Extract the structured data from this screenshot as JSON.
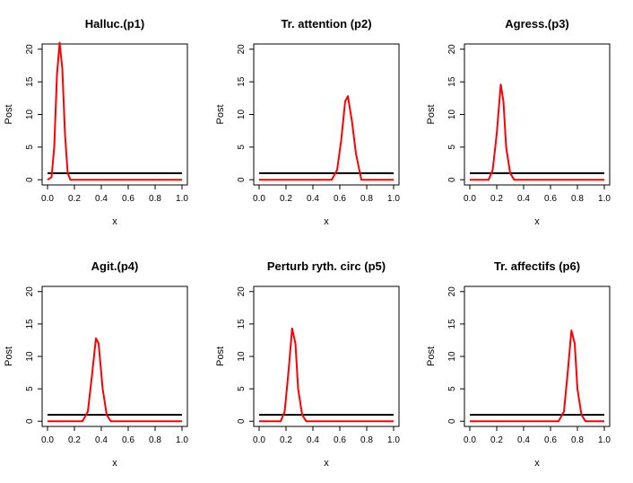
{
  "chart_data": [
    {
      "type": "line",
      "title": "Halluc.(p1)",
      "xlabel": "x",
      "ylabel": "Post",
      "xlim": [
        0,
        1
      ],
      "ylim": [
        0,
        20
      ],
      "xticks": [
        "0.0",
        "0.2",
        "0.4",
        "0.6",
        "0.8",
        "1.0"
      ],
      "yticks": [
        "0",
        "5",
        "10",
        "15",
        "20"
      ],
      "grid": false,
      "series": [
        {
          "color": "#000000",
          "x": [
            0,
            1
          ],
          "y": [
            1,
            1
          ]
        },
        {
          "color": "#ff0000",
          "x": [
            0.0,
            0.03,
            0.05,
            0.07,
            0.09,
            0.11,
            0.13,
            0.15,
            0.17,
            1.0
          ],
          "y": [
            0,
            0.4,
            5,
            16,
            21,
            17,
            7,
            1,
            0,
            0
          ]
        }
      ]
    },
    {
      "type": "line",
      "title": "Tr. attention (p2)",
      "xlabel": "x",
      "ylabel": "Post",
      "xlim": [
        0,
        1
      ],
      "ylim": [
        0,
        20
      ],
      "xticks": [
        "0.0",
        "0.2",
        "0.4",
        "0.6",
        "0.8",
        "1.0"
      ],
      "yticks": [
        "0",
        "5",
        "10",
        "15",
        "20"
      ],
      "grid": false,
      "series": [
        {
          "color": "#000000",
          "x": [
            0,
            1
          ],
          "y": [
            1,
            1
          ]
        },
        {
          "color": "#ff0000",
          "x": [
            0.0,
            0.54,
            0.58,
            0.61,
            0.64,
            0.66,
            0.69,
            0.72,
            0.76,
            1.0
          ],
          "y": [
            0,
            0,
            1.5,
            6,
            12,
            12.8,
            9,
            4,
            0,
            0
          ]
        }
      ]
    },
    {
      "type": "line",
      "title": "Agress.(p3)",
      "xlabel": "x",
      "ylabel": "Post",
      "xlim": [
        0,
        1
      ],
      "ylim": [
        0,
        20
      ],
      "xticks": [
        "0.0",
        "0.2",
        "0.4",
        "0.6",
        "0.8",
        "1.0"
      ],
      "yticks": [
        "0",
        "5",
        "10",
        "15",
        "20"
      ],
      "grid": false,
      "series": [
        {
          "color": "#000000",
          "x": [
            0,
            1
          ],
          "y": [
            1,
            1
          ]
        },
        {
          "color": "#ff0000",
          "x": [
            0.0,
            0.14,
            0.17,
            0.2,
            0.23,
            0.25,
            0.27,
            0.3,
            0.33,
            1.0
          ],
          "y": [
            0,
            0,
            1.5,
            7,
            14.6,
            12,
            5,
            1,
            0,
            0
          ]
        }
      ]
    },
    {
      "type": "line",
      "title": "Agit.(p4)",
      "xlabel": "x",
      "ylabel": "Post",
      "xlim": [
        0,
        1
      ],
      "ylim": [
        0,
        20
      ],
      "xticks": [
        "0.0",
        "0.2",
        "0.4",
        "0.6",
        "0.8",
        "1.0"
      ],
      "yticks": [
        "0",
        "5",
        "10",
        "15",
        "20"
      ],
      "grid": false,
      "series": [
        {
          "color": "#000000",
          "x": [
            0,
            1
          ],
          "y": [
            1,
            1
          ]
        },
        {
          "color": "#ff0000",
          "x": [
            0.0,
            0.26,
            0.3,
            0.33,
            0.36,
            0.38,
            0.41,
            0.44,
            0.47,
            1.0
          ],
          "y": [
            0,
            0,
            1.5,
            7,
            12.8,
            12,
            5,
            1,
            0,
            0
          ]
        }
      ]
    },
    {
      "type": "line",
      "title": "Perturb ryth. circ (p5)",
      "xlabel": "x",
      "ylabel": "Post",
      "xlim": [
        0,
        1
      ],
      "ylim": [
        0,
        20
      ],
      "xticks": [
        "0.0",
        "0.2",
        "0.4",
        "0.6",
        "0.8",
        "1.0"
      ],
      "yticks": [
        "0",
        "5",
        "10",
        "15",
        "20"
      ],
      "grid": false,
      "series": [
        {
          "color": "#000000",
          "x": [
            0,
            1
          ],
          "y": [
            1,
            1
          ]
        },
        {
          "color": "#ff0000",
          "x": [
            0.0,
            0.16,
            0.19,
            0.22,
            0.245,
            0.27,
            0.29,
            0.32,
            0.35,
            1.0
          ],
          "y": [
            0,
            0,
            1.5,
            8,
            14.3,
            12,
            5,
            1,
            0,
            0
          ]
        }
      ]
    },
    {
      "type": "line",
      "title": "Tr. affectifs (p6)",
      "xlabel": "x",
      "ylabel": "Post",
      "xlim": [
        0,
        1
      ],
      "ylim": [
        0,
        20
      ],
      "xticks": [
        "0.0",
        "0.2",
        "0.4",
        "0.6",
        "0.8",
        "1.0"
      ],
      "yticks": [
        "0",
        "5",
        "10",
        "15",
        "20"
      ],
      "grid": false,
      "series": [
        {
          "color": "#000000",
          "x": [
            0,
            1
          ],
          "y": [
            1,
            1
          ]
        },
        {
          "color": "#ff0000",
          "x": [
            0.0,
            0.66,
            0.7,
            0.73,
            0.755,
            0.78,
            0.8,
            0.83,
            0.86,
            1.0
          ],
          "y": [
            0,
            0,
            1.5,
            8,
            14,
            12,
            5,
            1,
            0,
            0
          ]
        }
      ]
    }
  ]
}
